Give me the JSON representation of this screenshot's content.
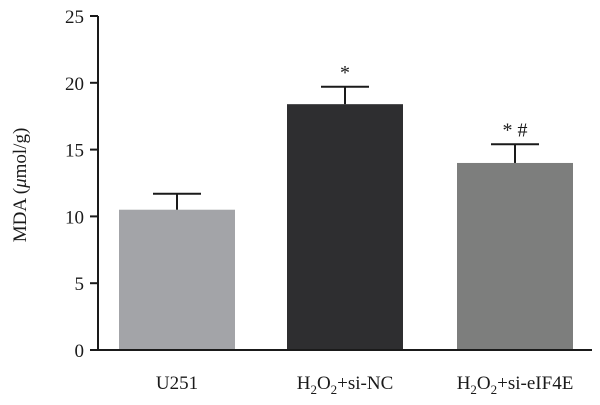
{
  "chart_data": {
    "type": "bar",
    "categories": [
      "U251",
      "H2O2+si-NC",
      "H2O2+si-eIF4E"
    ],
    "category_labels": [
      [
        {
          "t": "U251"
        }
      ],
      [
        {
          "t": "H"
        },
        {
          "t": "2",
          "sub": true
        },
        {
          "t": "O"
        },
        {
          "t": "2",
          "sub": true
        },
        {
          "t": "+si-NC"
        }
      ],
      [
        {
          "t": "H"
        },
        {
          "t": "2",
          "sub": true
        },
        {
          "t": "O"
        },
        {
          "t": "2",
          "sub": true
        },
        {
          "t": "+si-eIF4E"
        }
      ]
    ],
    "values": [
      10.5,
      18.4,
      14.0
    ],
    "errors": [
      1.2,
      1.3,
      1.4
    ],
    "annotations": [
      "",
      "*",
      "*  #"
    ],
    "colors": [
      "#a3a4a8",
      "#2e2e30",
      "#7d7e7d"
    ],
    "ylabel": "MDA (μmol/g)",
    "ylabel_parts": [
      {
        "t": "MDA ("
      },
      {
        "t": "μ",
        "italic": true
      },
      {
        "t": "mol/g)"
      }
    ],
    "ylim": [
      0,
      25
    ],
    "yticks": [
      0,
      5,
      10,
      15,
      20,
      25
    ],
    "grid": false,
    "legend": "none"
  }
}
